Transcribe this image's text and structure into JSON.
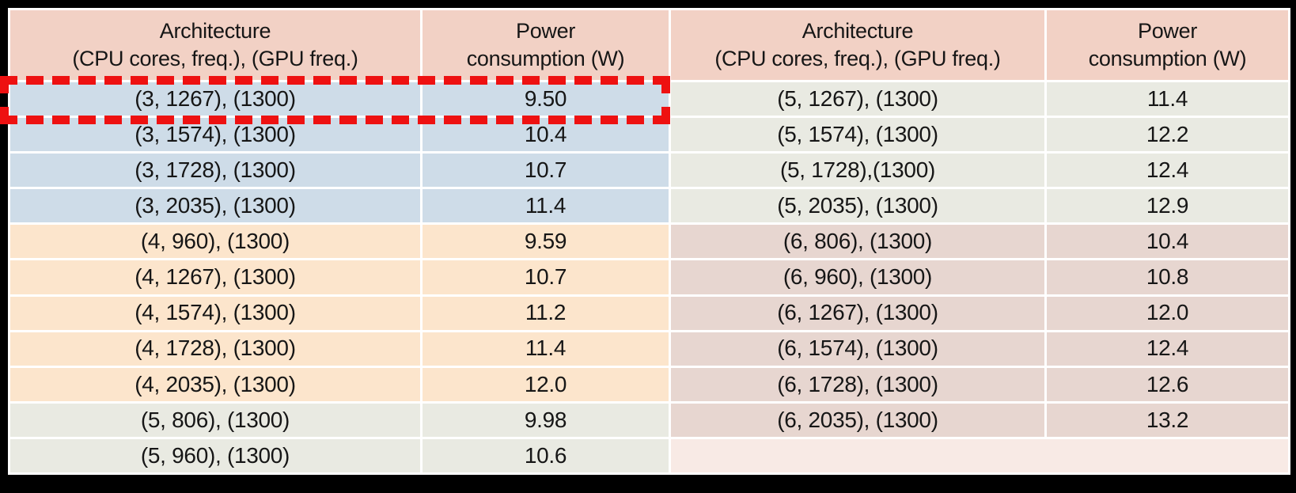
{
  "page": {
    "background": "#000000",
    "gridline_color": "#ffffff",
    "text_color": "#161616"
  },
  "colors": {
    "header_bg": "#f2d1c5",
    "cpu3_rows_bg": "#cedce8",
    "cpu4_rows_bg": "#fce5cc",
    "cpu5_rows_bg": "#e9eae2",
    "cpu6_rows_bg": "#e7d6d0",
    "empty_row_bg": "#f8eae5",
    "highlight_red": "#ee1111"
  },
  "tables": [
    {
      "name": "left",
      "header": {
        "architecture_line1": "Architecture",
        "architecture_line2": "(CPU cores, freq.), (GPU freq.)",
        "power_line1": "Power",
        "power_line2": "consumption (W)"
      },
      "rows": [
        {
          "architecture": "(3, 1267), (1300)",
          "power": "9.50",
          "group": "cpu3",
          "highlighted": true
        },
        {
          "architecture": "(3, 1574), (1300)",
          "power": "10.4",
          "group": "cpu3"
        },
        {
          "architecture": "(3, 1728), (1300)",
          "power": "10.7",
          "group": "cpu3"
        },
        {
          "architecture": "(3, 2035), (1300)",
          "power": "11.4",
          "group": "cpu3"
        },
        {
          "architecture": "(4, 960), (1300)",
          "power": "9.59",
          "group": "cpu4"
        },
        {
          "architecture": "(4, 1267), (1300)",
          "power": "10.7",
          "group": "cpu4"
        },
        {
          "architecture": "(4, 1574), (1300)",
          "power": "11.2",
          "group": "cpu4"
        },
        {
          "architecture": "(4, 1728), (1300)",
          "power": "11.4",
          "group": "cpu4"
        },
        {
          "architecture": "(4, 2035), (1300)",
          "power": "12.0",
          "group": "cpu4"
        },
        {
          "architecture": "(5, 806), (1300)",
          "power": "9.98",
          "group": "cpu5"
        },
        {
          "architecture": "(5, 960), (1300)",
          "power": "10.6",
          "group": "cpu5"
        }
      ],
      "empty_trailing_row": false
    },
    {
      "name": "right",
      "header": {
        "architecture_line1": "Architecture",
        "architecture_line2": "(CPU cores, freq.), (GPU freq.)",
        "power_line1": "Power",
        "power_line2": "consumption (W)"
      },
      "rows": [
        {
          "architecture": "(5, 1267), (1300)",
          "power": "11.4",
          "group": "cpu5"
        },
        {
          "architecture": "(5, 1574), (1300)",
          "power": "12.2",
          "group": "cpu5"
        },
        {
          "architecture": "(5, 1728),(1300)",
          "power": "12.4",
          "group": "cpu5"
        },
        {
          "architecture": "(5, 2035), (1300)",
          "power": "12.9",
          "group": "cpu5"
        },
        {
          "architecture": "(6, 806), (1300)",
          "power": "10.4",
          "group": "cpu6"
        },
        {
          "architecture": "(6, 960), (1300)",
          "power": "10.8",
          "group": "cpu6"
        },
        {
          "architecture": "(6, 1267), (1300)",
          "power": "12.0",
          "group": "cpu6"
        },
        {
          "architecture": "(6, 1574), (1300)",
          "power": "12.4",
          "group": "cpu6"
        },
        {
          "architecture": "(6, 1728), (1300)",
          "power": "12.6",
          "group": "cpu6"
        },
        {
          "architecture": "(6, 2035), (1300)",
          "power": "13.2",
          "group": "cpu6"
        }
      ],
      "empty_trailing_row": true
    }
  ],
  "annotation": {
    "type": "dashed-rectangle",
    "color": "#ee1111",
    "highlighted_architecture": "(3, 1267), (1300)",
    "highlighted_power": "9.50"
  }
}
